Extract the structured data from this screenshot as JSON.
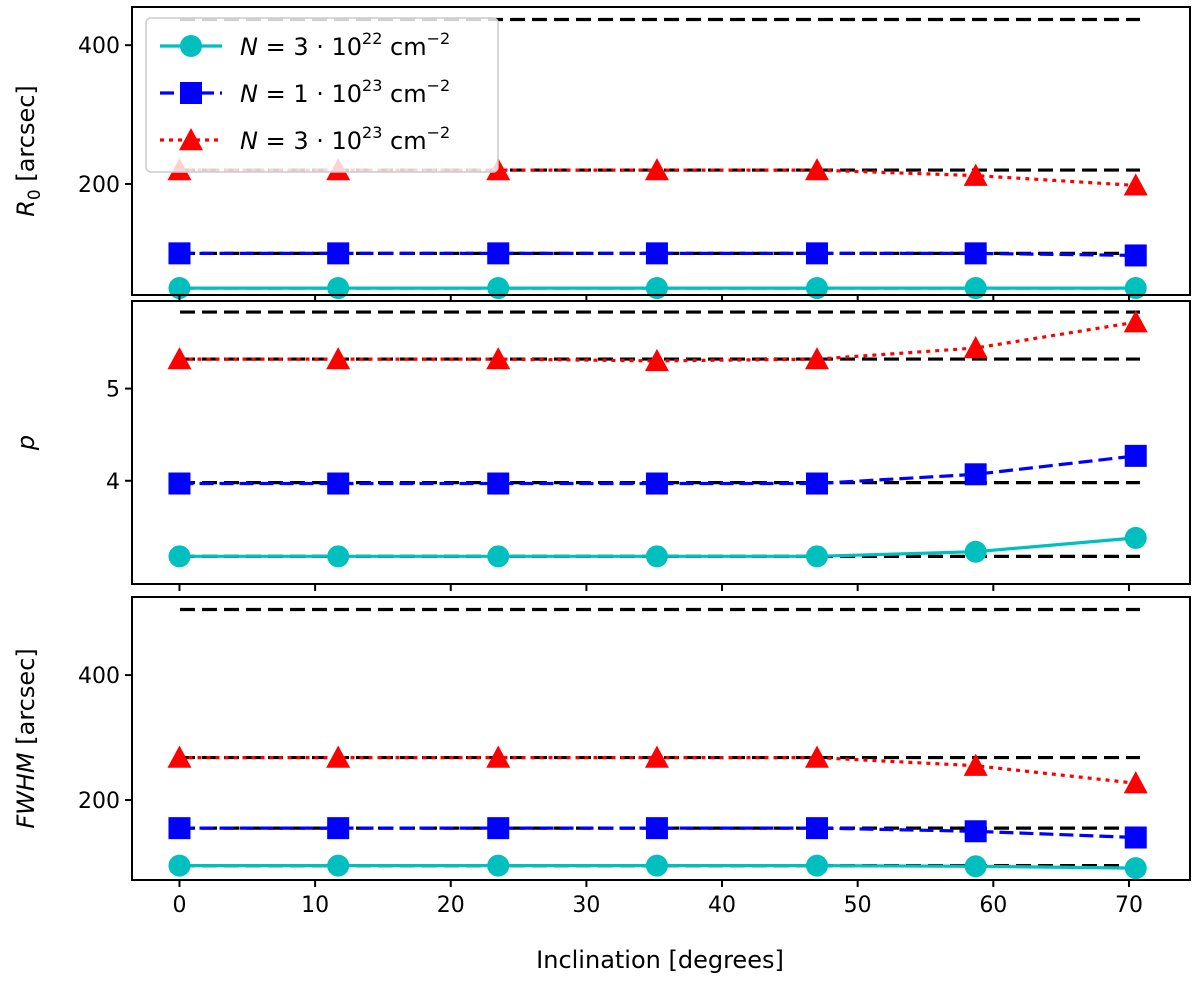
{
  "chart_data": [
    {
      "type": "line",
      "panel": "top",
      "ylabel": "R_0 [arcsec]",
      "ylabel_main": "R",
      "ylabel_sub": "0",
      "ylabel_rest": " [arcsec]",
      "yticks": [
        200,
        400
      ],
      "ylim": [
        40,
        455
      ],
      "x": [
        0,
        11.7,
        23.5,
        35.2,
        47.0,
        58.7,
        70.5
      ],
      "series": [
        {
          "name": "N = 3·10^22 cm^-2",
          "color": "#00bfbf",
          "marker": "circle",
          "linestyle": "solid",
          "values": [
            50,
            50,
            50,
            50,
            50,
            50,
            50
          ]
        },
        {
          "name": "N = 1·10^23 cm^-2",
          "color": "#0000ff",
          "marker": "square",
          "linestyle": "dashed",
          "values": [
            100,
            100,
            100,
            100,
            100,
            100,
            97
          ]
        },
        {
          "name": "N = 3·10^23 cm^-2",
          "color": "#ff0000",
          "marker": "triangle",
          "linestyle": "dotted",
          "values": [
            220,
            220,
            220,
            220,
            220,
            212,
            198
          ]
        }
      ],
      "reference_levels": [
        50,
        100,
        220,
        437
      ]
    },
    {
      "type": "line",
      "panel": "middle",
      "ylabel": "p",
      "yticks": [
        4,
        5
      ],
      "ylim": [
        2.88,
        5.95
      ],
      "x": [
        0,
        11.7,
        23.5,
        35.2,
        47.0,
        58.7,
        70.5
      ],
      "series": [
        {
          "name": "N = 3·10^22 cm^-2",
          "color": "#00bfbf",
          "marker": "circle",
          "linestyle": "solid",
          "values": [
            3.18,
            3.18,
            3.18,
            3.18,
            3.18,
            3.23,
            3.38
          ]
        },
        {
          "name": "N = 1·10^23 cm^-2",
          "color": "#0000ff",
          "marker": "square",
          "linestyle": "dashed",
          "values": [
            3.97,
            3.97,
            3.97,
            3.97,
            3.97,
            4.07,
            4.27
          ]
        },
        {
          "name": "N = 3·10^23 cm^-2",
          "color": "#ff0000",
          "marker": "triangle",
          "linestyle": "dotted",
          "values": [
            5.32,
            5.32,
            5.32,
            5.3,
            5.32,
            5.44,
            5.72
          ]
        }
      ],
      "reference_levels": [
        3.18,
        3.98,
        5.32,
        5.83
      ]
    },
    {
      "type": "line",
      "panel": "bottom",
      "ylabel": "FWHM [arcsec]",
      "ylabel_main": "FWHM",
      "ylabel_rest": " [arcsec]",
      "yticks": [
        200,
        400
      ],
      "ylim": [
        72,
        525
      ],
      "x": [
        0,
        11.7,
        23.5,
        35.2,
        47.0,
        58.7,
        70.5
      ],
      "xticks": [
        0,
        10,
        20,
        30,
        40,
        50,
        60,
        70
      ],
      "xlim": [
        -3.5,
        74.5
      ],
      "xlabel": "Inclination [degrees]",
      "series": [
        {
          "name": "N = 3·10^22 cm^-2",
          "color": "#00bfbf",
          "marker": "circle",
          "linestyle": "solid",
          "values": [
            95,
            95,
            95,
            95,
            95,
            94,
            91
          ]
        },
        {
          "name": "N = 1·10^23 cm^-2",
          "color": "#0000ff",
          "marker": "square",
          "linestyle": "dashed",
          "values": [
            155,
            155,
            155,
            155,
            155,
            150,
            140
          ]
        },
        {
          "name": "N = 3·10^23 cm^-2",
          "color": "#ff0000",
          "marker": "triangle",
          "linestyle": "dotted",
          "values": [
            268,
            268,
            268,
            268,
            268,
            255,
            227
          ]
        }
      ],
      "reference_levels": [
        95,
        155,
        268,
        505
      ]
    }
  ],
  "legend": {
    "placement": "top-left",
    "entries": [
      {
        "lhs": "N",
        "eq": " = 3 · 10",
        "exp": "22",
        "unit": " cm",
        "unit_exp": "−2"
      },
      {
        "lhs": "N",
        "eq": " = 1 · 10",
        "exp": "23",
        "unit": " cm",
        "unit_exp": "−2"
      },
      {
        "lhs": "N",
        "eq": " = 3 · 10",
        "exp": "23",
        "unit": " cm",
        "unit_exp": "−2"
      }
    ]
  }
}
